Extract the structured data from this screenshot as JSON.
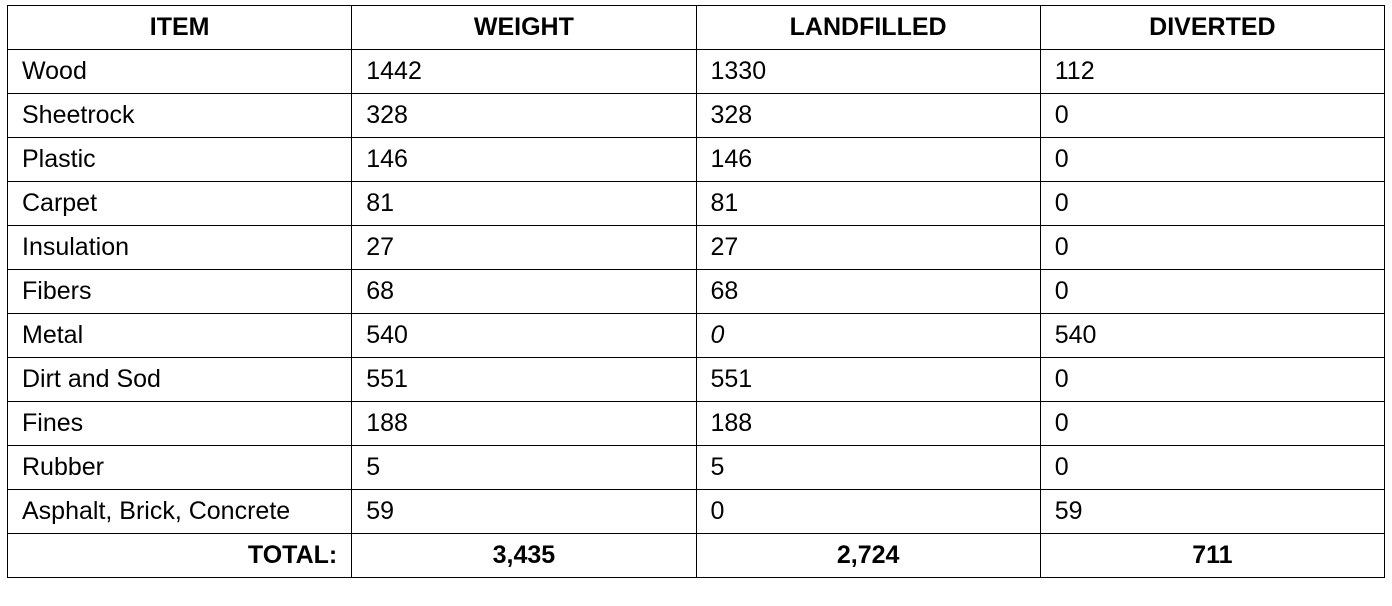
{
  "table": {
    "header": [
      "ITEM",
      "WEIGHT",
      "LANDFILLED",
      "DIVERTED"
    ],
    "rows": [
      [
        "Wood",
        "1442",
        "1330",
        "112"
      ],
      [
        "Sheetrock",
        "328",
        "328",
        "0"
      ],
      [
        "Plastic",
        "146",
        "146",
        "0"
      ],
      [
        "Carpet",
        "81",
        "81",
        "0"
      ],
      [
        "Insulation",
        "27",
        "27",
        "0"
      ],
      [
        "Fibers",
        "68",
        "68",
        "0"
      ],
      [
        "Metal",
        "540",
        "0",
        "540"
      ],
      [
        "Dirt and Sod",
        "551",
        "551",
        "0"
      ],
      [
        "Fines",
        "188",
        "188",
        "0"
      ],
      [
        "Rubber",
        "5",
        "5",
        "0"
      ],
      [
        "Asphalt, Brick, Concrete",
        "59",
        "0",
        "59"
      ]
    ],
    "total": [
      "TOTAL:",
      "3,435",
      "2,724",
      "711"
    ]
  }
}
